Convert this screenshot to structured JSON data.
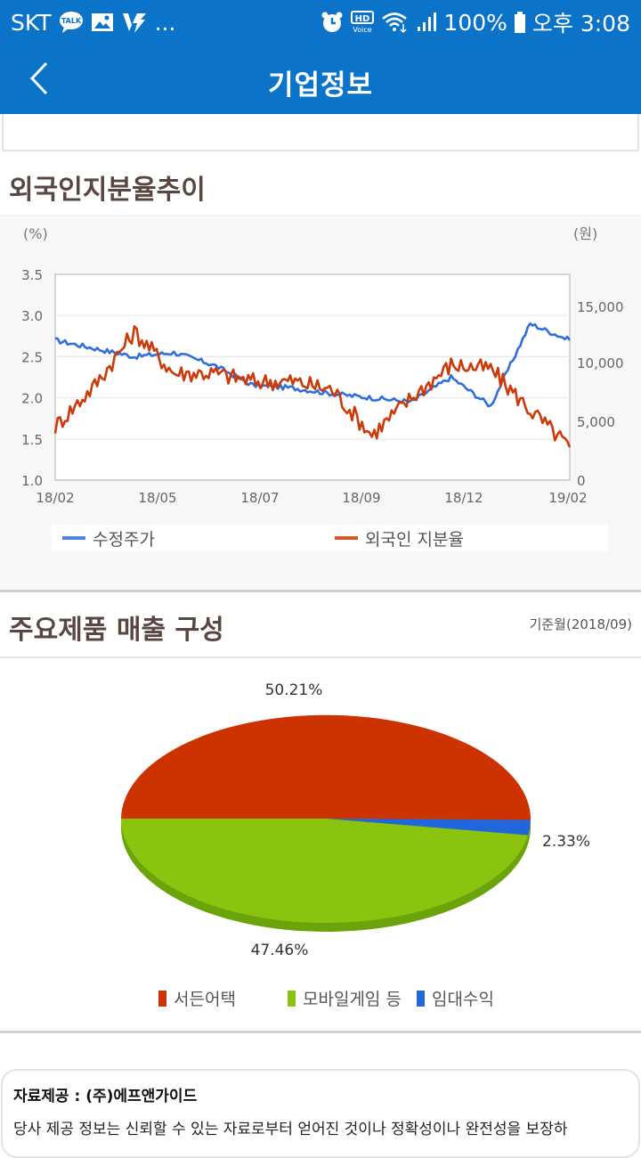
{
  "status_bar": {
    "carrier": "SKT",
    "more": "...",
    "battery": "100%",
    "time": "오후 3:08",
    "hd_label": "HD",
    "voice_label": "Voice",
    "talk_label": "TALK"
  },
  "app_bar": {
    "title": "기업정보",
    "back_icon": "chevron-left-icon"
  },
  "foreign_section": {
    "title": "외국인지분율추이"
  },
  "sales_section": {
    "title": "주요제품 매출 구성",
    "base_month": "기준월(2018/09)"
  },
  "notice": {
    "provider": "자료제공 : (주)에프앤가이드",
    "text": "당사 제공 정보는 신뢰할 수 있는 자료로부터 얻어진 것이나 정확성이나 완전성을 보장하"
  },
  "colors": {
    "brand": "#0b74c8",
    "series_price": "#2f6fdc",
    "series_foreign": "#cc3a0a",
    "pie_red": "#cc3300",
    "pie_green": "#8bc40f",
    "pie_blue": "#2266dd"
  },
  "chart_data": [
    {
      "type": "line",
      "title": "외국인지분율추이",
      "left_axis_label": "(%)",
      "right_axis_label": "(원)",
      "x_ticks": [
        "18/02",
        "18/05",
        "18/07",
        "18/09",
        "18/12",
        "19/02"
      ],
      "y_left_ticks": [
        "1.0",
        "1.5",
        "2.0",
        "2.5",
        "3.0",
        "3.5"
      ],
      "y_right_ticks": [
        "0",
        "5,000",
        "10,000",
        "15,000"
      ],
      "ylim_left": [
        1.0,
        3.5
      ],
      "ylim_right": [
        0,
        17500
      ],
      "grid": true,
      "legend_position": "bottom",
      "series": [
        {
          "name": "수정주가",
          "axis": "left",
          "color": "#2f6fdc",
          "x": [
            "18/02",
            "18/03",
            "18/04",
            "18/05",
            "18/06",
            "18/07",
            "18/08",
            "18/09",
            "18/10",
            "18/11",
            "18/12",
            "19/01",
            "19/01b",
            "19/02"
          ],
          "values": [
            2.7,
            2.6,
            2.5,
            2.55,
            2.4,
            2.15,
            2.12,
            2.05,
            2.0,
            1.95,
            2.25,
            1.9,
            2.9,
            2.7
          ]
        },
        {
          "name": "외국인 지분율",
          "axis": "left",
          "color": "#cc3a0a",
          "x": [
            "18/02",
            "18/03",
            "18/04",
            "18/05",
            "18/06",
            "18/07",
            "18/08",
            "18/09",
            "18/10",
            "18/11",
            "18/12",
            "19/01",
            "19/01b",
            "19/02"
          ],
          "values": [
            1.65,
            2.15,
            2.8,
            2.3,
            2.3,
            2.2,
            2.2,
            2.1,
            1.55,
            2.0,
            2.4,
            2.35,
            1.85,
            1.4
          ]
        }
      ],
      "legend": [
        "수정주가",
        "외국인 지분율"
      ]
    },
    {
      "type": "pie",
      "title": "주요제품 매출 구성",
      "subtitle": "기준월(2018/09)",
      "categories": [
        "서든어택",
        "모바일게임 등",
        "임대수익"
      ],
      "values": [
        50.21,
        47.46,
        2.33
      ],
      "labels": [
        "50.21%",
        "47.46%",
        "2.33%"
      ],
      "colors": [
        "#cc3300",
        "#8bc40f",
        "#2266dd"
      ],
      "legend_position": "bottom"
    }
  ]
}
